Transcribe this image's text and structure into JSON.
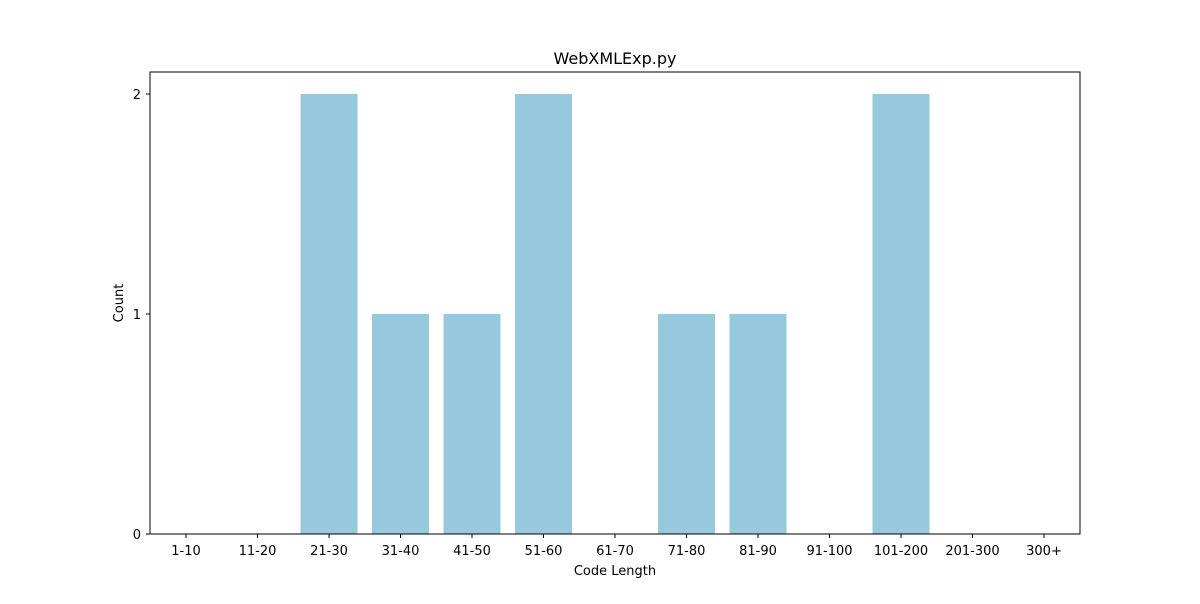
{
  "chart_data": {
    "type": "bar",
    "title": "WebXMLExp.py",
    "xlabel": "Code Length",
    "ylabel": "Count",
    "categories": [
      "1-10",
      "11-20",
      "21-30",
      "31-40",
      "41-50",
      "51-60",
      "61-70",
      "71-80",
      "81-90",
      "91-100",
      "101-200",
      "201-300",
      "300+"
    ],
    "values": [
      0,
      0,
      2,
      1,
      1,
      2,
      0,
      1,
      1,
      0,
      2,
      0,
      0
    ],
    "ylim": [
      0,
      2.1
    ],
    "yticks": [
      0,
      1,
      2
    ],
    "bar_color": "#96c9dd",
    "grid": false,
    "legend": "none"
  }
}
